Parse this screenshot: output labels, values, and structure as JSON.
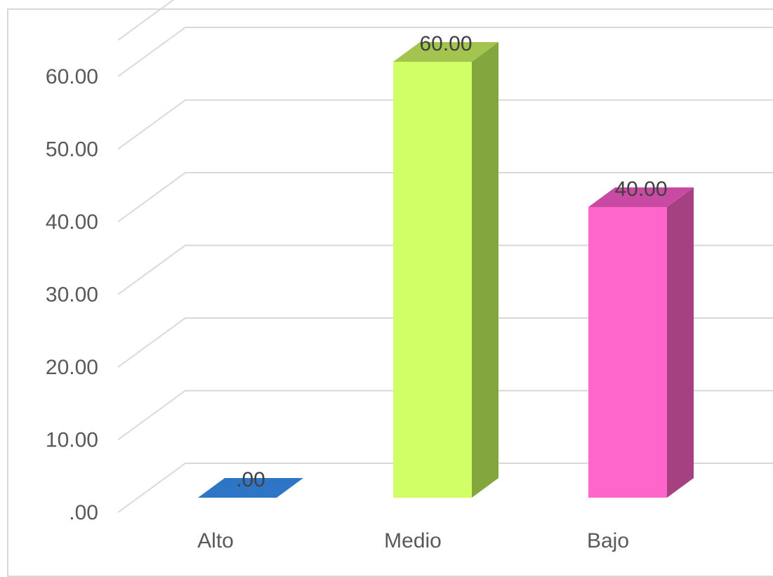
{
  "chart_data": {
    "type": "bar",
    "style": "3d-column",
    "categories": [
      "Alto",
      "Medio",
      "Bajo"
    ],
    "values": [
      0,
      60,
      40
    ],
    "data_labels": [
      ".00",
      "60.00",
      "40.00"
    ],
    "ylim": [
      0,
      65
    ],
    "y_ticks": [
      0,
      10,
      20,
      30,
      40,
      50,
      60
    ],
    "y_tick_labels": [
      ".00",
      "10.00",
      "20.00",
      "30.00",
      "40.00",
      "50.00",
      "60.00"
    ],
    "grid": true,
    "legend": "none",
    "colors": {
      "front": [
        "#2e75c6",
        "#d0ff66",
        "#ff66cc"
      ],
      "side": [
        "#1f5aa0",
        "#83a63f",
        "#a54180"
      ],
      "top": [
        "#2874c5",
        "#a3c54f",
        "#c94aa3"
      ],
      "grid": "#d9d9d9"
    }
  }
}
